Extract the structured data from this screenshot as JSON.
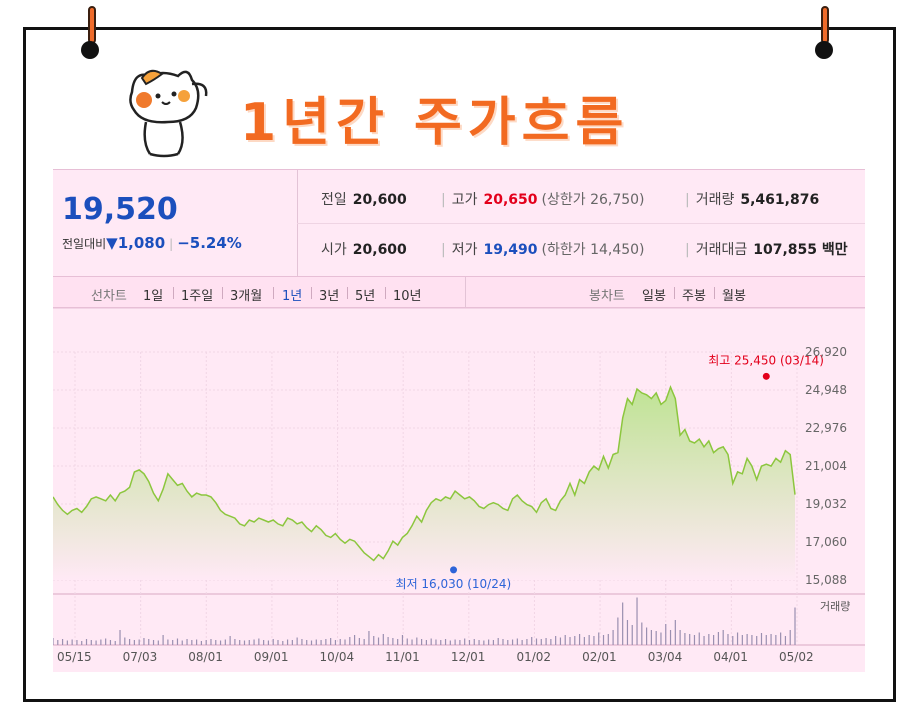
{
  "title": "1년간 주가흐름",
  "quote": {
    "price": "19,520",
    "change_label": "전일대비",
    "change_amount": "1,080",
    "change_pct": "−5.24%",
    "prev_label": "전일",
    "prev_value": "20,600",
    "open_label": "시가",
    "open_value": "20,600",
    "high_label": "고가",
    "high_value": "20,650",
    "upper_limit_text": "(상한가 26,750)",
    "low_label": "저가",
    "low_value": "19,490",
    "lower_limit_text": "(하한가 14,450)",
    "volume_label": "거래량",
    "volume_value": "5,461,876",
    "amount_label": "거래대금",
    "amount_value": "107,855 백만"
  },
  "tabs": {
    "line_label": "선차트",
    "line_periods": [
      "1일",
      "1주일",
      "3개월",
      "1년",
      "3년",
      "5년",
      "10년"
    ],
    "active": "1년",
    "candle_label": "봉차트",
    "candle_periods": [
      "일봉",
      "주봉",
      "월봉"
    ]
  },
  "chart_data": {
    "type": "area",
    "x_tick_labels": [
      "05/15",
      "07/03",
      "08/01",
      "09/01",
      "10/04",
      "11/01",
      "12/01",
      "01/02",
      "02/01",
      "03/04",
      "04/01",
      "05/02"
    ],
    "y_tick_labels": [
      "26,920",
      "24,948",
      "22,976",
      "21,004",
      "19,032",
      "17,060",
      "15,088"
    ],
    "ylim": [
      15088,
      26920
    ],
    "max_annotation": "최고 25,450 (03/14)",
    "min_annotation": "최저 16,030 (10/24)",
    "max_point": [
      149,
      25450
    ],
    "min_point": [
      82,
      16030
    ],
    "volume_label": "거래량",
    "colors": {
      "line": "#8cc63e",
      "fill_top": "#bfe394",
      "fill_bottom": "#ffe9f5",
      "max": "#e3001b",
      "min": "#2d64d8"
    },
    "series": [
      {
        "values": [
          19400,
          19000,
          18700,
          18500,
          18700,
          18800,
          18600,
          18900,
          19300,
          19400,
          19300,
          19200,
          19500,
          19200,
          19600,
          19700,
          19900,
          20700,
          20800,
          20600,
          20200,
          19600,
          19200,
          19800,
          20600,
          20300,
          20000,
          20100,
          19700,
          19400,
          19600,
          19500,
          19500,
          19400,
          19100,
          18700,
          18500,
          18400,
          18300,
          18000,
          17900,
          18200,
          18100,
          18300,
          18200,
          18100,
          18200,
          18000,
          17900,
          18300,
          18200,
          18000,
          18100,
          17800,
          17600,
          17900,
          17700,
          17400,
          17300,
          17500,
          17200,
          17000,
          17200,
          17100,
          16800,
          16500,
          16300,
          16100,
          16400,
          16200,
          16600,
          17100,
          16900,
          17300,
          17500,
          17900,
          18400,
          18100,
          18700,
          19100,
          19300,
          19200,
          19400,
          19300,
          19700,
          19500,
          19300,
          19400,
          19200,
          18900,
          18800,
          19000,
          19100,
          19000,
          18800,
          18700,
          19300,
          19500,
          19200,
          19000,
          18900,
          18600,
          19100,
          19300,
          18800,
          18700,
          19200,
          19500,
          20100,
          19500,
          20300,
          20100,
          20700,
          21000,
          20800,
          21500,
          20900,
          21600,
          21700,
          23500,
          24500,
          24200,
          25000,
          24800,
          24700,
          24500,
          24800,
          24200,
          24400,
          25100,
          24500,
          22600,
          22900,
          22300,
          22200,
          22400,
          22000,
          22300,
          21700,
          21900,
          22000,
          21600,
          20100,
          20700,
          20600,
          21400,
          21000,
          20300,
          21000,
          21100,
          21000,
          21400,
          21200,
          21800,
          21600,
          19520
        ]
      }
    ],
    "volume_values": [
      0.14,
      0.1,
      0.12,
      0.09,
      0.11,
      0.1,
      0.08,
      0.12,
      0.1,
      0.09,
      0.11,
      0.13,
      0.1,
      0.08,
      0.3,
      0.15,
      0.12,
      0.1,
      0.11,
      0.14,
      0.12,
      0.1,
      0.09,
      0.2,
      0.11,
      0.1,
      0.13,
      0.09,
      0.12,
      0.1,
      0.11,
      0.08,
      0.1,
      0.12,
      0.1,
      0.09,
      0.11,
      0.18,
      0.12,
      0.1,
      0.09,
      0.1,
      0.11,
      0.13,
      0.1,
      0.09,
      0.12,
      0.1,
      0.08,
      0.11,
      0.1,
      0.15,
      0.12,
      0.1,
      0.09,
      0.11,
      0.1,
      0.12,
      0.14,
      0.1,
      0.12,
      0.11,
      0.16,
      0.2,
      0.14,
      0.12,
      0.28,
      0.18,
      0.15,
      0.22,
      0.16,
      0.14,
      0.12,
      0.2,
      0.13,
      0.11,
      0.15,
      0.12,
      0.1,
      0.13,
      0.11,
      0.1,
      0.12,
      0.09,
      0.11,
      0.1,
      0.13,
      0.1,
      0.12,
      0.1,
      0.09,
      0.11,
      0.1,
      0.14,
      0.12,
      0.1,
      0.11,
      0.13,
      0.1,
      0.12,
      0.16,
      0.13,
      0.12,
      0.14,
      0.12,
      0.18,
      0.15,
      0.2,
      0.16,
      0.18,
      0.22,
      0.16,
      0.2,
      0.18,
      0.25,
      0.2,
      0.22,
      0.3,
      0.55,
      0.85,
      0.5,
      0.4,
      0.95,
      0.45,
      0.35,
      0.3,
      0.28,
      0.25,
      0.42,
      0.3,
      0.5,
      0.3,
      0.24,
      0.22,
      0.2,
      0.25,
      0.18,
      0.22,
      0.2,
      0.26,
      0.3,
      0.22,
      0.18,
      0.25,
      0.2,
      0.22,
      0.2,
      0.18,
      0.24,
      0.2,
      0.22,
      0.2,
      0.25,
      0.18,
      0.3,
      0.75
    ]
  }
}
